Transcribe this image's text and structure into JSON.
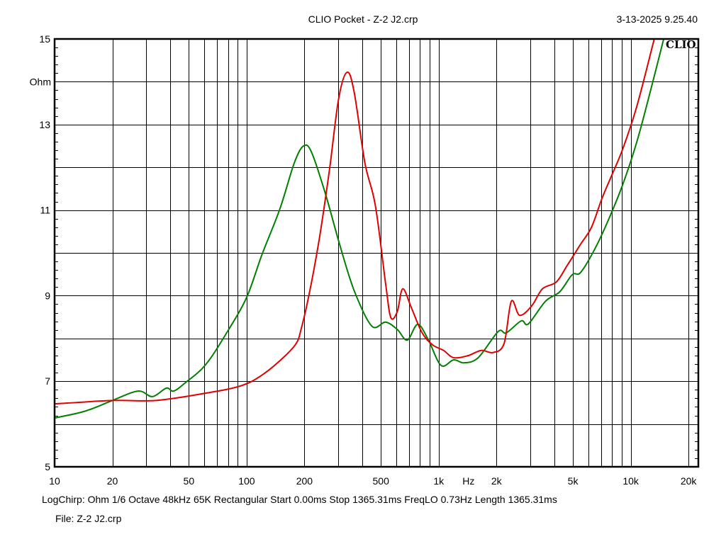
{
  "header": {
    "title": "CLIO Pocket - Z-2  J2.crp",
    "datetime": "3-13-2025 9.25.40",
    "logo": "CLIO"
  },
  "footer": {
    "settings": "LogChirp:  Ohm   1/6 Octave   48kHz   65K   Rectangular   Start 0.00ms    Stop 1365.31ms    FreqLO 0.73Hz    Length 1365.31ms",
    "file": "File: Z-2  J2.crp"
  },
  "chart_data": {
    "type": "line",
    "title": "CLIO Pocket - Z-2  J2.crp",
    "xlabel": "Hz",
    "ylabel": "Ohm",
    "xscale": "log",
    "xlim": [
      10,
      22500
    ],
    "ylim": [
      5,
      15
    ],
    "grid": true,
    "x_ticks": [
      {
        "value": 10,
        "label": "10"
      },
      {
        "value": 20,
        "label": "20"
      },
      {
        "value": 50,
        "label": "50"
      },
      {
        "value": 100,
        "label": "100"
      },
      {
        "value": 200,
        "label": "200"
      },
      {
        "value": 500,
        "label": "500"
      },
      {
        "value": 1000,
        "label": "1k"
      },
      {
        "value": 2000,
        "label": "2k"
      },
      {
        "value": 5000,
        "label": "5k"
      },
      {
        "value": 10000,
        "label": "10k"
      },
      {
        "value": 20000,
        "label": "20k"
      }
    ],
    "y_ticks": [
      {
        "value": 5,
        "label": "5"
      },
      {
        "value": 7,
        "label": "7"
      },
      {
        "value": 9,
        "label": "9"
      },
      {
        "value": 11,
        "label": "11"
      },
      {
        "value": 13,
        "label": "13"
      },
      {
        "value": 15,
        "label": "15"
      }
    ],
    "series": [
      {
        "name": "Green",
        "color": "#008000",
        "x": [
          10,
          14.4,
          20,
          27.2,
          32.3,
          38.2,
          41.6,
          48.1,
          61,
          78.7,
          100,
          120,
          149,
          177,
          198,
          218,
          258,
          305,
          363,
          448,
          529,
          609,
          686,
          778,
          885,
          1029,
          1197,
          1352,
          1606,
          2040,
          2250,
          2690,
          2930,
          3600,
          4270,
          4960,
          5480,
          6480,
          7670,
          9090,
          10770,
          12760,
          14850
        ],
        "y": [
          6.14,
          6.3,
          6.55,
          6.77,
          6.64,
          6.84,
          6.77,
          6.97,
          7.38,
          8.13,
          8.96,
          9.95,
          11.03,
          12.1,
          12.5,
          12.35,
          11.36,
          10.2,
          9.12,
          8.29,
          8.38,
          8.21,
          7.96,
          8.33,
          7.96,
          7.37,
          7.5,
          7.43,
          7.55,
          8.16,
          8.13,
          8.41,
          8.34,
          8.87,
          9.09,
          9.49,
          9.54,
          10.08,
          10.78,
          11.6,
          12.6,
          13.84,
          15.0
        ]
      },
      {
        "name": "Red",
        "color": "#e00000",
        "x": [
          10,
          20,
          33.7,
          61,
          93,
          120,
          155,
          181,
          192,
          210,
          238,
          270,
          301,
          333,
          363,
          413,
          468,
          529,
          563,
          609,
          650,
          722,
          820,
          930,
          1060,
          1197,
          1425,
          1666,
          1920,
          2190,
          2390,
          2640,
          3050,
          3470,
          4100,
          4660,
          5480,
          6250,
          7080,
          8030,
          9090,
          10770,
          13260
        ],
        "y": [
          6.47,
          6.55,
          6.55,
          6.72,
          6.89,
          7.14,
          7.55,
          7.88,
          8.21,
          8.96,
          10.28,
          11.94,
          13.59,
          14.22,
          13.76,
          12.1,
          11.11,
          9.29,
          8.49,
          8.63,
          9.16,
          8.71,
          8.13,
          7.85,
          7.72,
          7.55,
          7.6,
          7.72,
          7.67,
          7.88,
          8.87,
          8.54,
          8.76,
          9.16,
          9.32,
          9.7,
          10.2,
          10.6,
          11.27,
          11.85,
          12.43,
          13.43,
          15.0
        ]
      }
    ]
  }
}
